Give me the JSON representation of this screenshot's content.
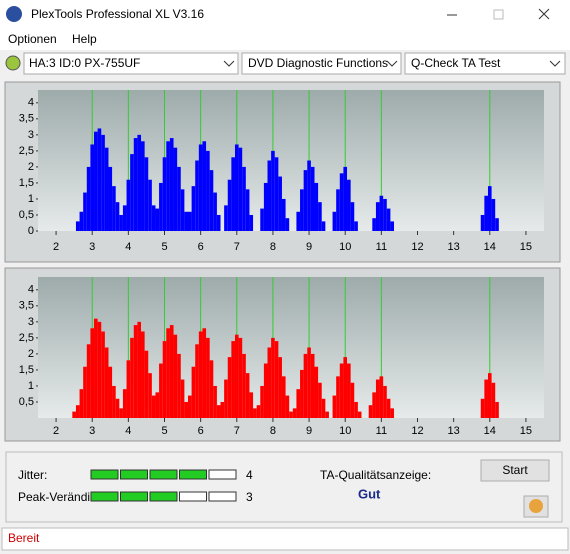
{
  "window": {
    "title": "PlexTools Professional XL V3.16"
  },
  "menu": [
    "Optionen",
    "Help"
  ],
  "toolbar": {
    "drive": "HA:3 ID:0  PX-755UF",
    "function": "DVD Diagnostic Functions",
    "test": "Q-Check TA Test"
  },
  "charts": [
    {
      "type": "bar",
      "color": "#0000ff",
      "marker_color": "#33cc33",
      "xlim": [
        1.5,
        15.5
      ],
      "ylim": [
        0,
        4.4
      ],
      "xticks": [
        2,
        3,
        4,
        5,
        6,
        7,
        8,
        9,
        10,
        11,
        12,
        13,
        14,
        15
      ],
      "yticks": [
        0,
        {
          "value": 0.5,
          "label": "0,5"
        },
        1,
        {
          "value": 1.5,
          "label": "1,5"
        },
        2,
        {
          "value": 2.5,
          "label": "2,5"
        },
        3,
        {
          "value": 3.5,
          "label": "3,5"
        },
        4
      ],
      "markers": [
        3,
        4,
        5,
        6,
        7,
        8,
        9,
        10,
        11,
        14
      ],
      "x": [
        2.6,
        2.7,
        2.8,
        2.9,
        3.0,
        3.1,
        3.2,
        3.3,
        3.4,
        3.5,
        3.6,
        3.7,
        3.8,
        3.9,
        4.0,
        4.1,
        4.2,
        4.3,
        4.4,
        4.5,
        4.6,
        4.7,
        4.8,
        4.9,
        5.0,
        5.1,
        5.2,
        5.3,
        5.4,
        5.5,
        5.6,
        5.7,
        5.8,
        5.9,
        6.0,
        6.1,
        6.2,
        6.3,
        6.4,
        6.5,
        6.7,
        6.8,
        6.9,
        7.0,
        7.1,
        7.2,
        7.3,
        7.4,
        7.7,
        7.8,
        7.9,
        8.0,
        8.1,
        8.2,
        8.3,
        8.4,
        8.7,
        8.8,
        8.9,
        9.0,
        9.1,
        9.2,
        9.3,
        9.4,
        9.7,
        9.8,
        9.9,
        10.0,
        10.1,
        10.2,
        10.3,
        10.8,
        10.9,
        11.0,
        11.1,
        11.2,
        11.3,
        13.8,
        13.9,
        14.0,
        14.1,
        14.2
      ],
      "values": [
        0.3,
        0.6,
        1.2,
        2.0,
        2.7,
        3.1,
        3.2,
        3.0,
        2.6,
        2.0,
        1.4,
        0.9,
        0.5,
        0.8,
        1.6,
        2.4,
        2.9,
        3.0,
        2.8,
        2.3,
        1.6,
        0.8,
        0.7,
        1.5,
        2.3,
        2.8,
        2.9,
        2.6,
        2.0,
        1.3,
        0.6,
        0.6,
        1.4,
        2.2,
        2.7,
        2.8,
        2.5,
        1.9,
        1.2,
        0.5,
        0.8,
        1.6,
        2.3,
        2.7,
        2.6,
        2.0,
        1.3,
        0.5,
        0.7,
        1.5,
        2.2,
        2.5,
        2.3,
        1.7,
        1.0,
        0.4,
        0.6,
        1.3,
        1.9,
        2.2,
        2.0,
        1.5,
        0.9,
        0.3,
        0.6,
        1.3,
        1.8,
        2.0,
        1.6,
        0.9,
        0.3,
        0.4,
        0.9,
        1.1,
        1.0,
        0.7,
        0.3,
        0.5,
        1.1,
        1.4,
        1.0,
        0.4
      ]
    },
    {
      "type": "bar",
      "color": "#ff0000",
      "marker_color": "#33cc33",
      "xlim": [
        1.5,
        15.5
      ],
      "ylim": [
        0,
        4.4
      ],
      "xticks": [
        2,
        3,
        4,
        5,
        6,
        7,
        8,
        9,
        10,
        11,
        12,
        13,
        14,
        15
      ],
      "yticks": [
        {
          "value": 0.5,
          "label": "0,5"
        },
        1,
        {
          "value": 1.5,
          "label": "1,5"
        },
        2,
        {
          "value": 2.5,
          "label": "2,5"
        },
        3,
        {
          "value": 3.5,
          "label": "3,5"
        },
        4
      ],
      "markers": [
        3,
        4,
        5,
        6,
        7,
        8,
        9,
        10,
        11,
        14
      ],
      "x": [
        2.5,
        2.6,
        2.7,
        2.8,
        2.9,
        3.0,
        3.1,
        3.2,
        3.3,
        3.4,
        3.5,
        3.6,
        3.7,
        3.8,
        3.9,
        4.0,
        4.1,
        4.2,
        4.3,
        4.4,
        4.5,
        4.6,
        4.7,
        4.8,
        4.9,
        5.0,
        5.1,
        5.2,
        5.3,
        5.4,
        5.5,
        5.6,
        5.7,
        5.8,
        5.9,
        6.0,
        6.1,
        6.2,
        6.3,
        6.4,
        6.5,
        6.6,
        6.7,
        6.8,
        6.9,
        7.0,
        7.1,
        7.2,
        7.3,
        7.4,
        7.5,
        7.6,
        7.7,
        7.8,
        7.9,
        8.0,
        8.1,
        8.2,
        8.3,
        8.4,
        8.5,
        8.6,
        8.7,
        8.8,
        8.9,
        9.0,
        9.1,
        9.2,
        9.3,
        9.4,
        9.5,
        9.7,
        9.8,
        9.9,
        10.0,
        10.1,
        10.2,
        10.3,
        10.4,
        10.7,
        10.8,
        10.9,
        11.0,
        11.1,
        11.2,
        11.3,
        13.8,
        13.9,
        14.0,
        14.1,
        14.2
      ],
      "values": [
        0.2,
        0.4,
        0.9,
        1.6,
        2.3,
        2.8,
        3.1,
        3.0,
        2.7,
        2.2,
        1.6,
        1.0,
        0.6,
        0.3,
        0.9,
        1.8,
        2.5,
        2.9,
        3.0,
        2.7,
        2.1,
        1.4,
        0.7,
        0.8,
        1.7,
        2.4,
        2.8,
        2.9,
        2.6,
        2.0,
        1.2,
        0.5,
        0.7,
        1.6,
        2.3,
        2.7,
        2.8,
        2.5,
        1.8,
        1.0,
        0.4,
        0.5,
        1.2,
        1.9,
        2.4,
        2.6,
        2.5,
        2.0,
        1.4,
        0.8,
        0.3,
        0.4,
        1.0,
        1.7,
        2.2,
        2.5,
        2.4,
        1.9,
        1.3,
        0.7,
        0.2,
        0.3,
        0.9,
        1.5,
        2.0,
        2.2,
        2.0,
        1.6,
        1.1,
        0.6,
        0.2,
        0.7,
        1.3,
        1.7,
        1.9,
        1.7,
        1.1,
        0.5,
        0.2,
        0.4,
        0.8,
        1.2,
        1.3,
        1.0,
        0.6,
        0.3,
        0.6,
        1.2,
        1.4,
        1.1,
        0.5
      ]
    }
  ],
  "quality": {
    "jitter_label": "Jitter:",
    "jitter": 4,
    "peak_label": "Peak-Verändi",
    "peak": 3,
    "ta_label": "TA-Qualitätsanzeige:",
    "ta_result": "Gut"
  },
  "button": "Start",
  "status": "Bereit"
}
